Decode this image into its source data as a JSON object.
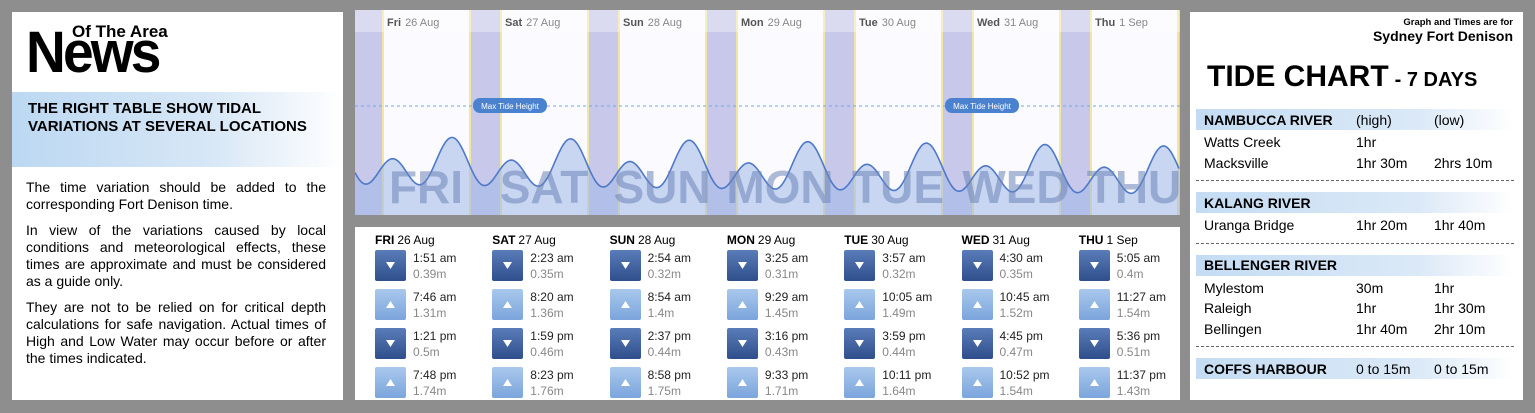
{
  "news": {
    "logo_small": "Of The Area",
    "logo_big": "News",
    "heading": "THE RIGHT TABLE SHOW TIDAL VARIATIONS AT SEVERAL LOCATIONS",
    "paragraphs": [
      "The time variation should be added to the corresponding Fort Denison time.",
      "In view of the variations caused by local conditions and meteorological effects, these times are approximate and must be considered as a guide only.",
      "They are not to be relied on for critical depth calculations for safe navigation. Actual times of High and Low Water may occur before or after the times indicated."
    ]
  },
  "graph": {
    "max_label": "Max Tide Height",
    "day_labels": [
      "FRI",
      "SAT",
      "SUN",
      "MON",
      "TUE",
      "WED",
      "THU"
    ]
  },
  "tides": {
    "days": [
      {
        "day": "FRI",
        "date": "26 Aug",
        "short": "Fri",
        "entries": [
          [
            "1:51 am",
            "0.39m"
          ],
          [
            "7:46 am",
            "1.31m"
          ],
          [
            "1:21 pm",
            "0.5m"
          ],
          [
            "7:48 pm",
            "1.74m"
          ]
        ]
      },
      {
        "day": "SAT",
        "date": "27 Aug",
        "short": "Sat",
        "entries": [
          [
            "2:23 am",
            "0.35m"
          ],
          [
            "8:20 am",
            "1.36m"
          ],
          [
            "1:59 pm",
            "0.46m"
          ],
          [
            "8:23 pm",
            "1.76m"
          ]
        ]
      },
      {
        "day": "SUN",
        "date": "28 Aug",
        "short": "Sun",
        "entries": [
          [
            "2:54 am",
            "0.32m"
          ],
          [
            "8:54 am",
            "1.4m"
          ],
          [
            "2:37 pm",
            "0.44m"
          ],
          [
            "8:58 pm",
            "1.75m"
          ]
        ]
      },
      {
        "day": "MON",
        "date": "29 Aug",
        "short": "Mon",
        "entries": [
          [
            "3:25 am",
            "0.31m"
          ],
          [
            "9:29 am",
            "1.45m"
          ],
          [
            "3:16 pm",
            "0.43m"
          ],
          [
            "9:33 pm",
            "1.71m"
          ]
        ]
      },
      {
        "day": "TUE",
        "date": "30 Aug",
        "short": "Tue",
        "entries": [
          [
            "3:57 am",
            "0.32m"
          ],
          [
            "10:05 am",
            "1.49m"
          ],
          [
            "3:59 pm",
            "0.44m"
          ],
          [
            "10:11 pm",
            "1.64m"
          ]
        ]
      },
      {
        "day": "WED",
        "date": "31 Aug",
        "short": "Wed",
        "entries": [
          [
            "4:30 am",
            "0.35m"
          ],
          [
            "10:45 am",
            "1.52m"
          ],
          [
            "4:45 pm",
            "0.47m"
          ],
          [
            "10:52 pm",
            "1.54m"
          ]
        ]
      },
      {
        "day": "THU",
        "date": "1 Sep",
        "short": "Thu",
        "entries": [
          [
            "5:05 am",
            "0.4m"
          ],
          [
            "11:27 am",
            "1.54m"
          ],
          [
            "5:36 pm",
            "0.51m"
          ],
          [
            "11:37 pm",
            "1.43m"
          ]
        ]
      }
    ]
  },
  "chart": {
    "note": "Graph and Times are for",
    "location": "Sydney Fort Denison",
    "title": "TIDE CHART",
    "subtitle": "- 7 DAYS",
    "sections": [
      {
        "name": "NAMBUCCA RIVER",
        "cols": [
          "(high)",
          "(low)"
        ],
        "rows": [
          [
            "Watts Creek",
            "1hr"
          ],
          [
            "Macksville",
            "1hr 30m",
            "2hrs 10m"
          ]
        ]
      },
      {
        "name": "KALANG RIVER",
        "cols": [],
        "rows": [
          [
            "Uranga Bridge",
            "1hr 20m",
            "1hr 40m"
          ]
        ]
      },
      {
        "name": "BELLENGER RIVER",
        "cols": [],
        "rows": [
          [
            "Mylestom",
            "30m",
            "1hr"
          ],
          [
            "Raleigh",
            "1hr",
            "1hr 30m"
          ],
          [
            "Bellingen",
            "1hr 40m",
            "2hr 10m"
          ]
        ]
      },
      {
        "name": "COFFS HARBOUR",
        "cols": [
          "0 to 15m",
          "0 to 15m"
        ],
        "rows": []
      }
    ]
  }
}
